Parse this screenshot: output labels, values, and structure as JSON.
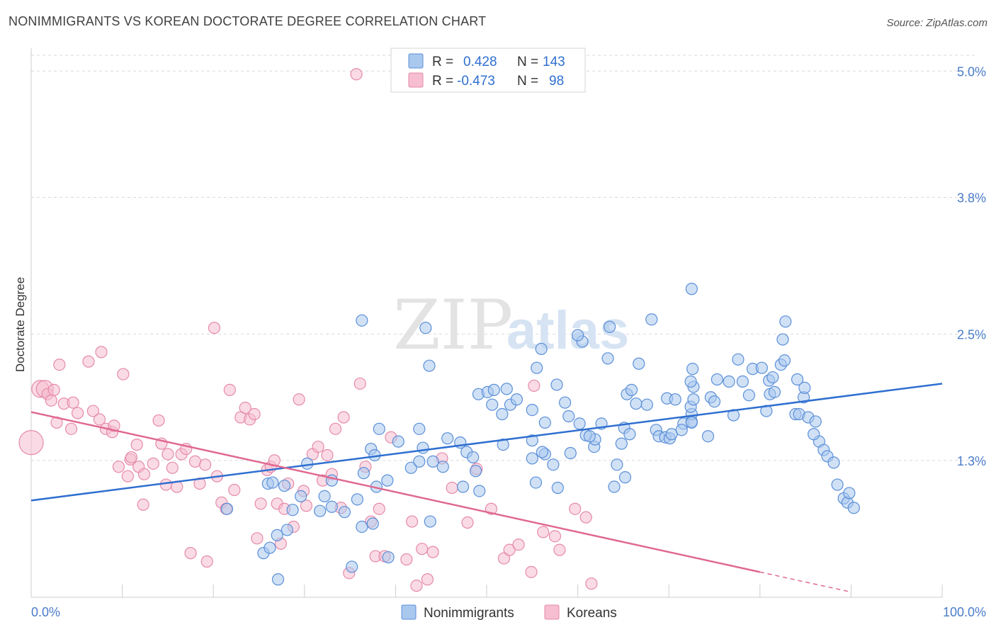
{
  "title": "NONIMMIGRANTS VS KOREAN DOCTORATE DEGREE CORRELATION CHART",
  "source": "Source: ZipAtlas.com",
  "watermark": {
    "zip": "ZIP",
    "atlas": "atlas"
  },
  "colors": {
    "blue_fill": "#a9c8ee",
    "blue_stroke": "#5b8fd8",
    "blue_line": "#2f6fd0",
    "pink_fill": "#f6bed0",
    "pink_stroke": "#e58aa8",
    "pink_line": "#e06890",
    "grid": "#d9d9d9",
    "axis_label": "#4a7cc9"
  },
  "legend": {
    "r_label": "R =",
    "n_label": "N =",
    "rows": [
      {
        "series": "Nonimmigrants",
        "r": "0.428",
        "n": "143"
      },
      {
        "series": "Koreans",
        "r": "-0.473",
        "n": "98"
      }
    ]
  },
  "bottom_legend": [
    "Nonimmigrants",
    "Koreans"
  ],
  "chart_data": {
    "type": "scatter",
    "title": "NONIMMIGRANTS VS KOREAN DOCTORATE DEGREE CORRELATION CHART",
    "xlabel": "",
    "ylabel": "Doctorate Degree",
    "xlim": [
      0,
      100
    ],
    "ylim": [
      0.0,
      5.15
    ],
    "x_tick_labels": [
      "0.0%",
      "100.0%"
    ],
    "y_ticks": [
      1.3,
      2.5,
      3.8,
      5.0
    ],
    "y_tick_labels": [
      "1.3%",
      "2.5%",
      "3.8%",
      "5.0%"
    ],
    "grid": true,
    "legend_position": "top-center",
    "series": [
      {
        "name": "Nonimmigrants",
        "trend": {
          "x": [
            0,
            100
          ],
          "y": [
            0.92,
            2.03
          ]
        },
        "points": [
          [
            21.5,
            0.84
          ],
          [
            27,
            0.59
          ],
          [
            25.5,
            0.42
          ],
          [
            26.2,
            0.47
          ],
          [
            27.1,
            0.17
          ],
          [
            28.1,
            0.64
          ],
          [
            28.7,
            0.83
          ],
          [
            26,
            1.08
          ],
          [
            26.5,
            1.09
          ],
          [
            27.8,
            1.06
          ],
          [
            29.6,
            0.96
          ],
          [
            30.3,
            1.27
          ],
          [
            31.7,
            0.82
          ],
          [
            32.2,
            0.96
          ],
          [
            33,
            0.86
          ],
          [
            33,
            1.11
          ],
          [
            35.2,
            0.29
          ],
          [
            34.4,
            0.81
          ],
          [
            35.8,
            0.93
          ],
          [
            36.3,
            0.67
          ],
          [
            36.3,
            2.63
          ],
          [
            37.9,
            1.05
          ],
          [
            39.1,
            1.11
          ],
          [
            39.2,
            0.38
          ],
          [
            37.5,
            0.7
          ],
          [
            36.5,
            1.18
          ],
          [
            37.3,
            1.41
          ],
          [
            37.7,
            1.35
          ],
          [
            40.3,
            1.48
          ],
          [
            38.2,
            1.6
          ],
          [
            41.7,
            1.23
          ],
          [
            42.6,
            1.6
          ],
          [
            42.6,
            1.29
          ],
          [
            43.0,
            1.42
          ],
          [
            44.1,
            1.29
          ],
          [
            43.3,
            2.56
          ],
          [
            43.7,
            2.2
          ],
          [
            43.8,
            0.72
          ],
          [
            45.2,
            1.24
          ],
          [
            45.7,
            1.51
          ],
          [
            47.1,
            1.47
          ],
          [
            47.4,
            1.05
          ],
          [
            47.8,
            1.38
          ],
          [
            48.5,
            1.33
          ],
          [
            49.2,
            1.01
          ],
          [
            48.8,
            1.2
          ],
          [
            49.1,
            1.93
          ],
          [
            50.1,
            1.95
          ],
          [
            50.8,
            1.97
          ],
          [
            50.6,
            1.83
          ],
          [
            51.8,
            1.45
          ],
          [
            52.6,
            1.83
          ],
          [
            51.7,
            1.74
          ],
          [
            52.2,
            1.98
          ],
          [
            53.3,
            1.88
          ],
          [
            55.0,
            1.78
          ],
          [
            55.0,
            1.49
          ],
          [
            55.4,
            1.09
          ],
          [
            55.5,
            2.18
          ],
          [
            56.0,
            2.36
          ],
          [
            55.0,
            1.32
          ],
          [
            56.4,
            1.66
          ],
          [
            56.4,
            1.36
          ],
          [
            56.1,
            1.38
          ],
          [
            57.3,
            1.26
          ],
          [
            57.8,
            1.04
          ],
          [
            57.7,
            2.02
          ],
          [
            58.6,
            1.85
          ],
          [
            59.0,
            1.72
          ],
          [
            59.2,
            1.37
          ],
          [
            60.5,
            2.43
          ],
          [
            60.2,
            1.65
          ],
          [
            60.0,
            2.49
          ],
          [
            61.8,
            1.43
          ],
          [
            61.9,
            1.5
          ],
          [
            60.9,
            1.54
          ],
          [
            61.3,
            1.53
          ],
          [
            62.6,
            1.65
          ],
          [
            63.5,
            2.57
          ],
          [
            63.3,
            2.27
          ],
          [
            64.8,
            1.46
          ],
          [
            65.2,
            1.14
          ],
          [
            64.0,
            1.05
          ],
          [
            64.3,
            1.26
          ],
          [
            65.1,
            1.61
          ],
          [
            65.7,
            1.55
          ],
          [
            65.4,
            1.93
          ],
          [
            65.9,
            1.97
          ],
          [
            66.4,
            1.84
          ],
          [
            67.6,
            1.83
          ],
          [
            66.7,
            2.22
          ],
          [
            68.1,
            2.64
          ],
          [
            68.6,
            1.59
          ],
          [
            68.9,
            1.53
          ],
          [
            69.6,
            1.52
          ],
          [
            69.8,
            1.89
          ],
          [
            70.1,
            1.51
          ],
          [
            70.3,
            1.55
          ],
          [
            70.7,
            1.88
          ],
          [
            71.6,
            1.65
          ],
          [
            72.5,
            1.67
          ],
          [
            71.4,
            1.59
          ],
          [
            72.5,
            1.74
          ],
          [
            72.4,
            1.81
          ],
          [
            72.5,
            2.93
          ],
          [
            72.6,
            2.17
          ],
          [
            72.7,
            2.0
          ],
          [
            72.4,
            2.05
          ],
          [
            72.5,
            1.66
          ],
          [
            72.7,
            1.88
          ],
          [
            74.3,
            1.53
          ],
          [
            74.6,
            1.9
          ],
          [
            75.0,
            1.86
          ],
          [
            75.3,
            2.07
          ],
          [
            76.6,
            2.05
          ],
          [
            77.6,
            2.26
          ],
          [
            78.1,
            2.05
          ],
          [
            77.1,
            1.73
          ],
          [
            78.8,
            1.92
          ],
          [
            79.2,
            2.17
          ],
          [
            80.2,
            2.18
          ],
          [
            81.0,
            2.06
          ],
          [
            81.1,
            1.93
          ],
          [
            81.4,
            2.09
          ],
          [
            80.7,
            1.77
          ],
          [
            81.6,
            1.95
          ],
          [
            82.3,
            2.21
          ],
          [
            82.7,
            2.25
          ],
          [
            82.5,
            2.45
          ],
          [
            82.8,
            2.62
          ],
          [
            83.9,
            1.74
          ],
          [
            84.1,
            2.07
          ],
          [
            84.8,
            1.9
          ],
          [
            84.9,
            1.99
          ],
          [
            84.3,
            1.74
          ],
          [
            85.3,
            1.71
          ],
          [
            86.1,
            1.67
          ],
          [
            86.5,
            1.48
          ],
          [
            85.9,
            1.55
          ],
          [
            87.0,
            1.4
          ],
          [
            87.4,
            1.34
          ],
          [
            88.1,
            1.28
          ],
          [
            88.5,
            1.07
          ],
          [
            89.2,
            0.94
          ],
          [
            89.6,
            0.9
          ],
          [
            90.3,
            0.85
          ],
          [
            89.8,
            0.99
          ]
        ]
      },
      {
        "name": "Koreans",
        "trend": {
          "x": [
            0,
            80
          ],
          "y": [
            1.76,
            0.24
          ]
        },
        "trend_dashed": {
          "x": [
            80,
            90
          ],
          "y": [
            0.24,
            0.05
          ]
        },
        "points": [
          [
            0.0,
            1.47
          ],
          [
            1.0,
            1.98
          ],
          [
            1.5,
            1.98
          ],
          [
            1.8,
            1.93
          ],
          [
            2.2,
            1.87
          ],
          [
            2.5,
            1.97
          ],
          [
            2.8,
            1.66
          ],
          [
            3.1,
            2.21
          ],
          [
            3.6,
            1.84
          ],
          [
            4.4,
            1.6
          ],
          [
            4.6,
            1.85
          ],
          [
            5.1,
            1.75
          ],
          [
            6.3,
            2.24
          ],
          [
            6.8,
            1.77
          ],
          [
            7.5,
            1.69
          ],
          [
            7.7,
            2.33
          ],
          [
            8.2,
            1.6
          ],
          [
            8.9,
            1.57
          ],
          [
            9.1,
            1.63
          ],
          [
            9.6,
            1.24
          ],
          [
            10.1,
            2.12
          ],
          [
            10.6,
            1.15
          ],
          [
            10.9,
            1.31
          ],
          [
            11.0,
            1.33
          ],
          [
            11.6,
            1.45
          ],
          [
            11.8,
            1.24
          ],
          [
            12.3,
            0.88
          ],
          [
            12.4,
            1.17
          ],
          [
            13.4,
            1.27
          ],
          [
            14.0,
            1.68
          ],
          [
            14.3,
            1.46
          ],
          [
            14.8,
            1.07
          ],
          [
            15.0,
            1.36
          ],
          [
            15.5,
            1.23
          ],
          [
            16.0,
            1.05
          ],
          [
            16.5,
            1.36
          ],
          [
            17.0,
            1.41
          ],
          [
            17.5,
            0.42
          ],
          [
            18.0,
            1.29
          ],
          [
            18.5,
            1.08
          ],
          [
            19.1,
            1.26
          ],
          [
            19.3,
            0.34
          ],
          [
            20.1,
            2.56
          ],
          [
            20.4,
            1.15
          ],
          [
            20.9,
            0.9
          ],
          [
            21.4,
            0.84
          ],
          [
            21.8,
            1.97
          ],
          [
            22.3,
            1.02
          ],
          [
            23.0,
            1.71
          ],
          [
            23.5,
            1.8
          ],
          [
            24.0,
            1.69
          ],
          [
            24.5,
            1.74
          ],
          [
            24.8,
            0.56
          ],
          [
            25.2,
            0.89
          ],
          [
            25.9,
            1.21
          ],
          [
            26.3,
            1.24
          ],
          [
            26.7,
            1.3
          ],
          [
            27.0,
            0.89
          ],
          [
            27.4,
            0.51
          ],
          [
            27.8,
            0.84
          ],
          [
            28.2,
            1.08
          ],
          [
            28.8,
            0.67
          ],
          [
            29.4,
            1.88
          ],
          [
            29.9,
            1.01
          ],
          [
            30.2,
            0.87
          ],
          [
            30.9,
            1.36
          ],
          [
            31.5,
            1.43
          ],
          [
            32.0,
            1.11
          ],
          [
            32.5,
            1.35
          ],
          [
            33.0,
            1.17
          ],
          [
            33.4,
            1.6
          ],
          [
            34.0,
            0.85
          ],
          [
            34.3,
            1.71
          ],
          [
            34.9,
            0.23
          ],
          [
            35.7,
            4.97
          ],
          [
            36.1,
            2.03
          ],
          [
            36.7,
            1.24
          ],
          [
            37.3,
            0.72
          ],
          [
            37.8,
            0.39
          ],
          [
            38.2,
            0.84
          ],
          [
            38.8,
            0.39
          ],
          [
            39.5,
            1.52
          ],
          [
            41.2,
            0.36
          ],
          [
            41.8,
            0.72
          ],
          [
            42.3,
            0.11
          ],
          [
            42.9,
            0.46
          ],
          [
            43.5,
            0.17
          ],
          [
            44.1,
            0.43
          ],
          [
            45.1,
            1.32
          ],
          [
            46.2,
            1.04
          ],
          [
            47.9,
            0.71
          ],
          [
            48.9,
            1.22
          ],
          [
            50.5,
            0.84
          ],
          [
            51.9,
            0.37
          ],
          [
            52.5,
            0.45
          ],
          [
            53.5,
            0.5
          ],
          [
            54.9,
            0.24
          ],
          [
            55.2,
            2.01
          ],
          [
            56.2,
            0.62
          ],
          [
            57.5,
            0.58
          ],
          [
            58.0,
            0.45
          ],
          [
            59.7,
            0.84
          ],
          [
            60.9,
            0.76
          ],
          [
            61.5,
            0.13
          ]
        ]
      }
    ]
  }
}
